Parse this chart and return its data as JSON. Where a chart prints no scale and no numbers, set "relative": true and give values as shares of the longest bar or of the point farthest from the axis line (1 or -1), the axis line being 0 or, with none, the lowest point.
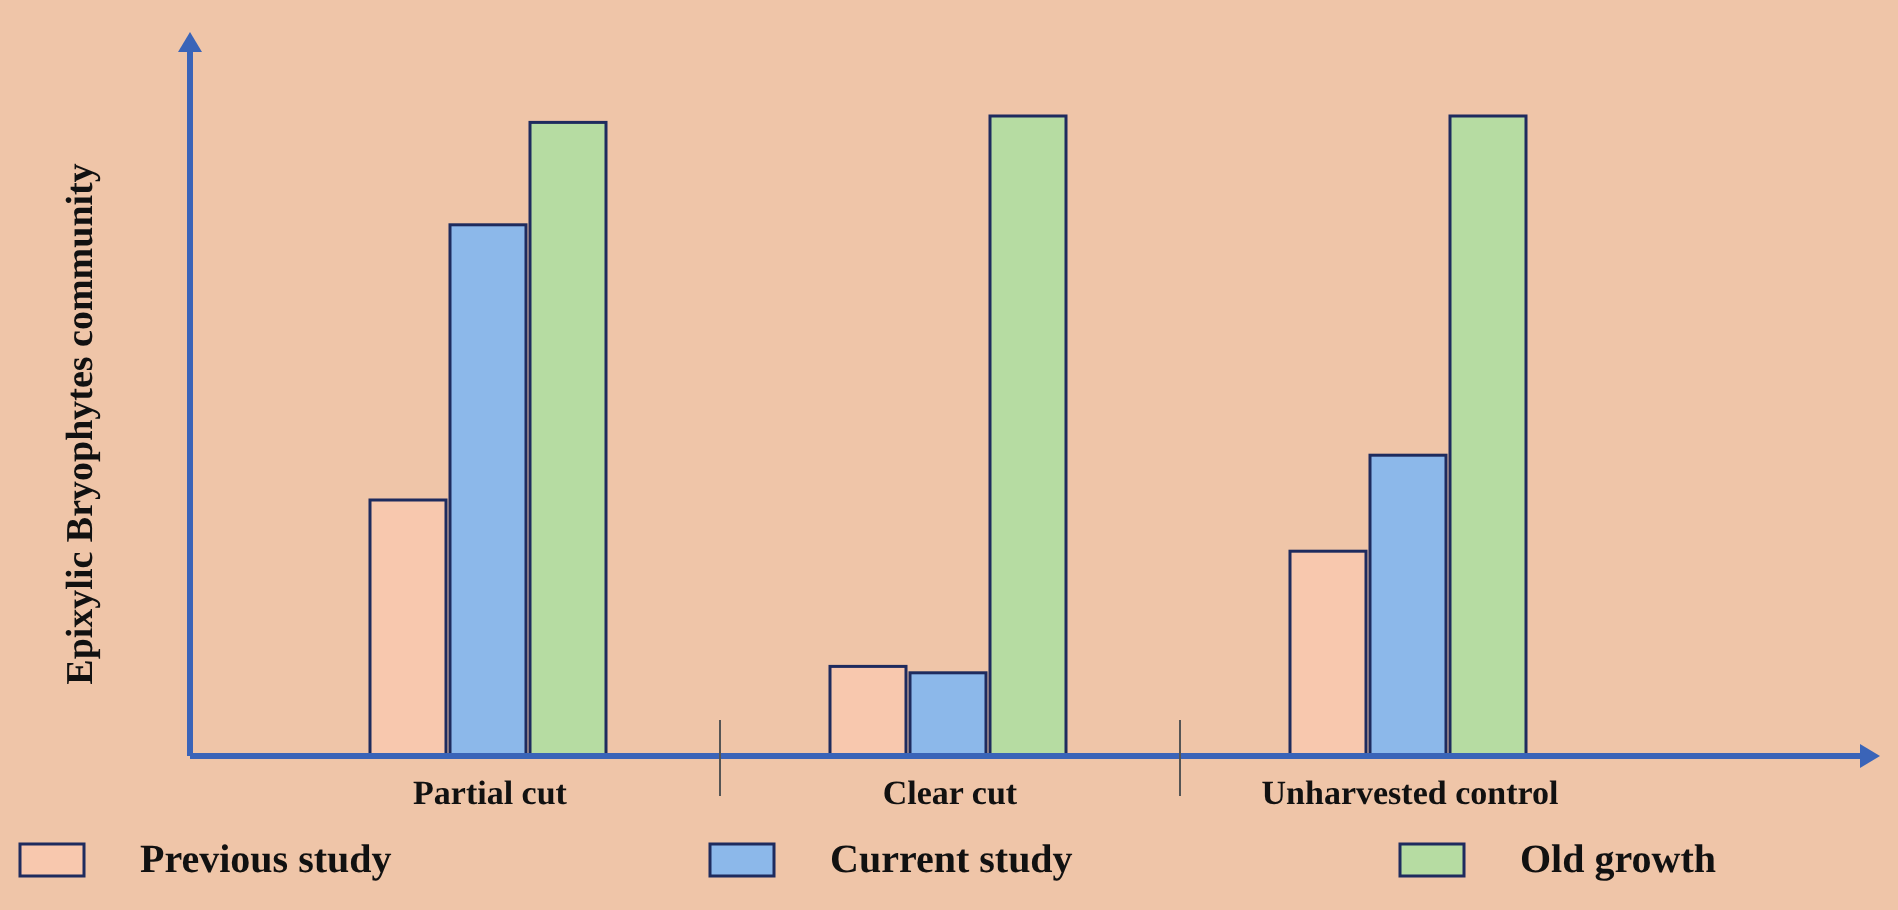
{
  "chart_data": {
    "type": "bar",
    "ylabel": "Epixylic Bryophytes community",
    "relative": true,
    "categories": [
      "Partial cut",
      "Clear cut",
      "Unharvested control"
    ],
    "series": [
      {
        "name": "Previous study",
        "color": "#f8c8ae",
        "values": [
          0.4,
          0.14,
          0.32
        ]
      },
      {
        "name": "Current study",
        "color": "#8cb8ea",
        "values": [
          0.83,
          0.13,
          0.47
        ]
      },
      {
        "name": "Old growth",
        "color": "#b6dca2",
        "values": [
          0.99,
          1,
          1
        ]
      }
    ],
    "legend": "bottom"
  }
}
